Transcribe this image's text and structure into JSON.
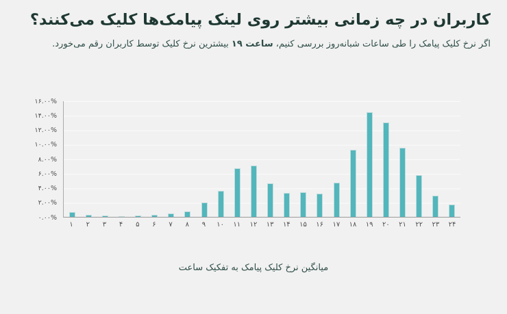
{
  "page": {
    "title": "کاربران در چه زمانی بیشتر روی لینک پیامک‌ها کلیک می‌کنند؟",
    "subtitle_prefix": "اگر نرخ کلیک پیامک را طی ساعات شبانه‌روز بررسی کنیم، ",
    "subtitle_highlight": "ساعت ۱۹",
    "subtitle_suffix": " بیشترین نرخ کلیک توسط کاربران رقم می‌خورد.",
    "caption": "میانگین نرخ کلیک پیامک به تفکیک ساعت"
  },
  "colors": {
    "background": "#f1f1f1",
    "bar": "#52b6bc",
    "title_text": "#1e3832",
    "body_text": "#2f4e48",
    "axis_line": "#9c9c9c",
    "tick_text": "#4d4d4d"
  },
  "chart_data": {
    "type": "bar",
    "title": "میانگین نرخ کلیک پیامک به تفکیک ساعت",
    "xlabel": "",
    "ylabel": "",
    "categories": [
      1,
      2,
      3,
      4,
      5,
      6,
      7,
      8,
      9,
      10,
      11,
      12,
      13,
      14,
      15,
      16,
      17,
      18,
      19,
      20,
      21,
      22,
      23,
      24
    ],
    "category_labels": [
      "۱",
      "۲",
      "۳",
      "۴",
      "۵",
      "۶",
      "۷",
      "۸",
      "۹",
      "۱۰",
      "۱۱",
      "۱۲",
      "۱۳",
      "۱۴",
      "۱۵",
      "۱۶",
      "۱۷",
      "۱۸",
      "۱۹",
      "۲۰",
      "۲۱",
      "۲۲",
      "۲۳",
      "۲۴"
    ],
    "values": [
      0.7,
      0.3,
      0.2,
      0.1,
      0.15,
      0.25,
      0.5,
      0.8,
      2.0,
      3.6,
      6.7,
      7.1,
      4.6,
      3.3,
      3.4,
      3.2,
      4.7,
      9.3,
      14.5,
      13.1,
      9.6,
      5.8,
      2.9,
      1.7
    ],
    "y_tick_labels": [
      "۱۶.۰۰%",
      "۱۴.۰۰%",
      "۱۲.۰۰%",
      "۱۰.۰۰%",
      "۸.۰۰%",
      "۶.۰۰%",
      "۴.۰۰%",
      "۲.۰۰%",
      "۰.۰۰%"
    ],
    "ylim": [
      0,
      16
    ],
    "y_tick_step": 2,
    "grid": true,
    "legend": false
  }
}
